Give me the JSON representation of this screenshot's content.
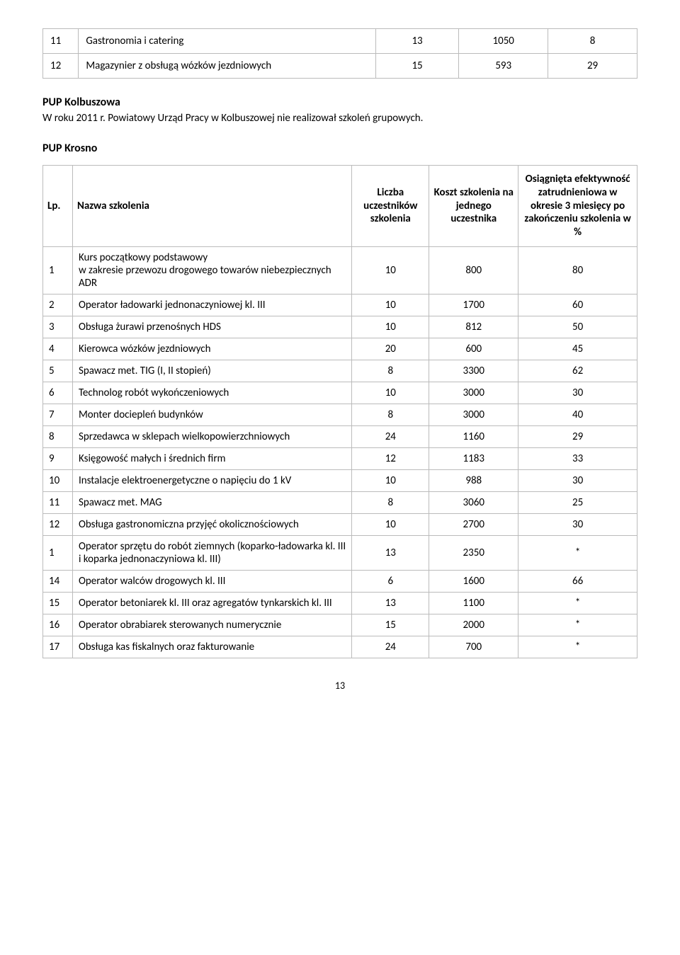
{
  "top_table": {
    "rows": [
      {
        "lp": "11",
        "name": "Gastronomia i catering",
        "c1": "13",
        "c2": "1050",
        "c3": "8"
      },
      {
        "lp": "12",
        "name": "Magazynier z obsługą wózków jezdniowych",
        "c1": "15",
        "c2": "593",
        "c3": "29"
      }
    ]
  },
  "section_kolbuszowa": {
    "title": "PUP Kolbuszowa",
    "text": "W roku 2011 r. Powiatowy Urząd Pracy w Kolbuszowej nie realizował szkoleń grupowych."
  },
  "section_krosno": {
    "title": "PUP Krosno"
  },
  "main_table": {
    "headers": {
      "lp": "Lp.",
      "name": "Nazwa szkolenia",
      "cnt": "Liczba uczestników szkolenia",
      "cost": "Koszt szkolenia na jednego uczestnika",
      "eff": "Osiągnięta efektywność zatrudnieniowa w okresie 3 miesięcy po zakończeniu szkolenia w %"
    },
    "rows": [
      {
        "lp": "1",
        "name": "Kurs początkowy podstawowy\nw zakresie przewozu drogowego towarów niebezpiecznych ADR",
        "cnt": "10",
        "cost": "800",
        "eff": "80"
      },
      {
        "lp": "2",
        "name": "Operator ładowarki jednonaczyniowej kl. III",
        "cnt": "10",
        "cost": "1700",
        "eff": "60"
      },
      {
        "lp": "3",
        "name": "Obsługa żurawi przenośnych HDS",
        "cnt": "10",
        "cost": "812",
        "eff": "50"
      },
      {
        "lp": "4",
        "name": "Kierowca wózków jezdniowych",
        "cnt": "20",
        "cost": "600",
        "eff": "45"
      },
      {
        "lp": "5",
        "name": "Spawacz met. TIG (I, II stopień)",
        "cnt": "8",
        "cost": "3300",
        "eff": "62"
      },
      {
        "lp": "6",
        "name": "Technolog robót wykończeniowych",
        "cnt": "10",
        "cost": "3000",
        "eff": "30"
      },
      {
        "lp": "7",
        "name": "Monter dociepleń budynków",
        "cnt": "8",
        "cost": "3000",
        "eff": "40"
      },
      {
        "lp": "8",
        "name": "Sprzedawca w sklepach wielkopowierzchniowych",
        "cnt": "24",
        "cost": "1160",
        "eff": "29"
      },
      {
        "lp": "9",
        "name": "Księgowość małych i średnich firm",
        "cnt": "12",
        "cost": "1183",
        "eff": "33"
      },
      {
        "lp": "10",
        "name": "Instalacje elektroenergetyczne o napięciu do 1 kV",
        "cnt": "10",
        "cost": "988",
        "eff": "30"
      },
      {
        "lp": "11",
        "name": "Spawacz met. MAG",
        "cnt": "8",
        "cost": "3060",
        "eff": "25"
      },
      {
        "lp": "12",
        "name": "Obsługa gastronomiczna przyjęć okolicznościowych",
        "cnt": "10",
        "cost": "2700",
        "eff": "30"
      },
      {
        "lp": "1",
        "name": "Operator sprzętu do robót ziemnych (koparko-ładowarka kl. III i koparka jednonaczyniowa kl. III)",
        "cnt": "13",
        "cost": "2350",
        "eff": "*"
      },
      {
        "lp": "14",
        "name": "Operator walców drogowych kl. III",
        "cnt": "6",
        "cost": "1600",
        "eff": "66"
      },
      {
        "lp": "15",
        "name": "Operator betoniarek kl. III oraz agregatów tynkarskich kl. III",
        "cnt": "13",
        "cost": "1100",
        "eff": "*"
      },
      {
        "lp": "16",
        "name": "Operator obrabiarek sterowanych numerycznie",
        "cnt": "15",
        "cost": "2000",
        "eff": "*"
      },
      {
        "lp": "17",
        "name": "Obsługa kas fiskalnych oraz fakturowanie",
        "cnt": "24",
        "cost": "700",
        "eff": "*"
      }
    ]
  },
  "page_number": "13"
}
